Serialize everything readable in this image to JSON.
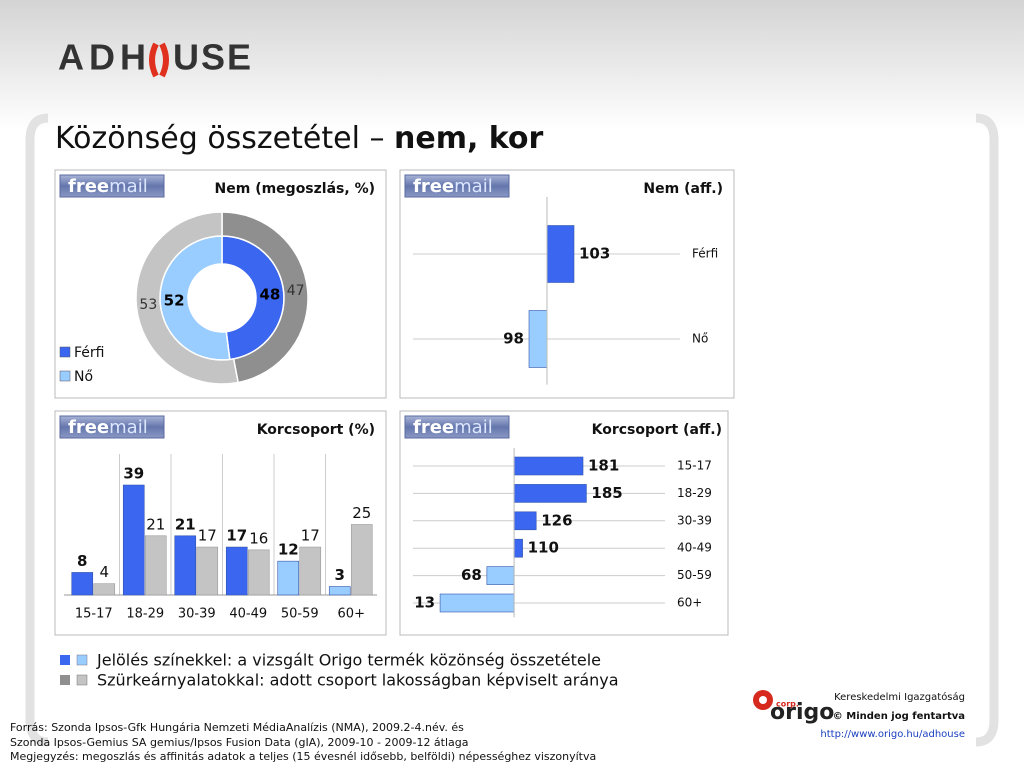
{
  "header": {
    "logo_left": "ADH",
    "logo_right": "USE",
    "title": "Közönség összetétel – ",
    "title_bold": "nem, kor",
    "badge": [
      "free",
      "mail"
    ]
  },
  "chart_data": [
    {
      "type": "donut",
      "title": "Nem (megoszlás, %)",
      "categories": [
        "Férfi",
        "Nő"
      ],
      "series": [
        {
          "values": [
            48,
            52
          ],
          "colors": [
            "#3a66f0",
            "#99ccff"
          ]
        },
        {
          "values": [
            47,
            53
          ],
          "colors": [
            "#8f8f8f",
            "#c4c4c4"
          ]
        }
      ],
      "legend": "bottom-left"
    },
    {
      "type": "hbar",
      "title": "Nem (aff.)",
      "categories": [
        "Férfi",
        "Nő"
      ],
      "values": [
        103,
        98
      ],
      "colors": [
        "#3a66f0",
        "#99ccff"
      ],
      "base": 100,
      "xlim": [
        85,
        115
      ],
      "grid": true
    },
    {
      "type": "grouped_bar",
      "title": "Korcsoport (%)",
      "categories": [
        "15-17",
        "18-29",
        "30-39",
        "40-49",
        "50-59",
        "60+"
      ],
      "series": [
        {
          "values": [
            8,
            39,
            21,
            17,
            12,
            3
          ],
          "colors": [
            "#3a66f0",
            "#3a66f0",
            "#3a66f0",
            "#3a66f0",
            "#99ccff",
            "#99ccff"
          ]
        },
        {
          "values": [
            4,
            21,
            17,
            16,
            17,
            25
          ],
          "color": "#c4c4c4"
        }
      ],
      "ylim": [
        0,
        50
      ],
      "grid": true
    },
    {
      "type": "hbar",
      "title": "Korcsoport (aff.)",
      "categories": [
        "15-17",
        "18-29",
        "30-39",
        "40-49",
        "50-59",
        "60+"
      ],
      "values": [
        181,
        185,
        126,
        110,
        68,
        13
      ],
      "colors": [
        "#3a66f0",
        "#3a66f0",
        "#3a66f0",
        "#3a66f0",
        "#99ccff",
        "#99ccff"
      ],
      "base": 100,
      "xlim": [
        -20,
        295
      ],
      "grid": true
    }
  ],
  "legend_notes": [
    "Jelölés színekkel: a vizsgált Origo termék közönség összetétele",
    "Szürkeárnyalatokkal: adott csoport lakosságban képviselt aránya"
  ],
  "footer": {
    "source": [
      "Forrás: Szonda Ipsos-Gfk Hungária Nemzeti MédiaAnalízis (NMA), 2009.2-4.név. és",
      "Szonda Ipsos-Gemius SA gemius/Ipsos Fusion Data (gIA), 2009-10 - 2009-12 átlaga",
      "Megjegyzés: megoszlás és affinitás adatok a teljes (15 évesnél idősebb, belföldi) népességhez viszonyítva"
    ],
    "brand": "origo",
    "brand_small": "corp.",
    "company": "Kereskedelmi Igazgatóság",
    "rights": "© Minden jog fentartva",
    "url": "http://www.origo.hu/adhouse"
  }
}
